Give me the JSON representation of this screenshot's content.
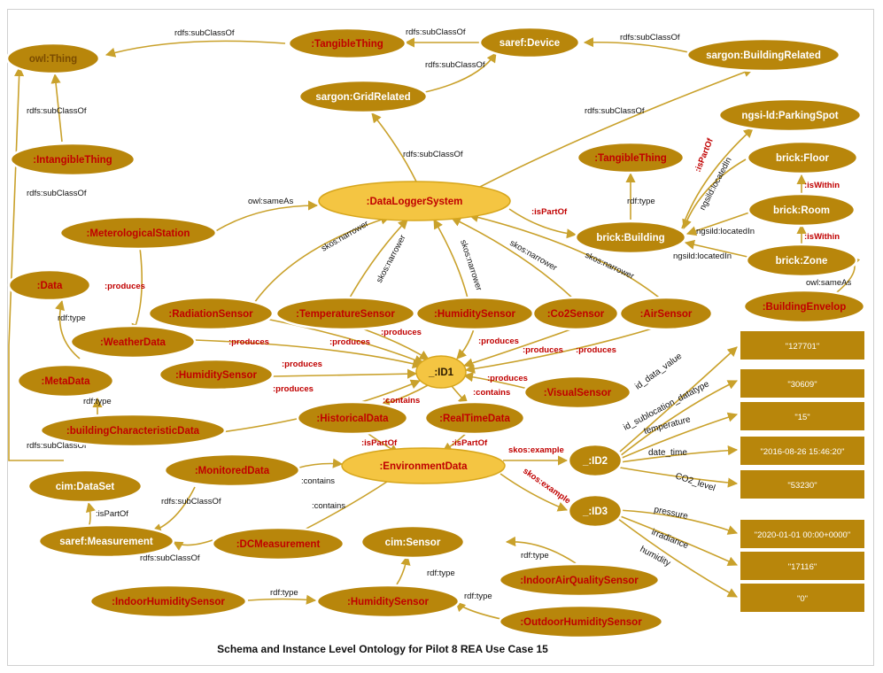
{
  "caption": "Schema and Instance Level Ontology for Pilot 8 REA Use Case 15",
  "colors": {
    "node": "#b8860b",
    "highlight_node": "#f4c542",
    "edge": "#c9a12b",
    "red_label": "#c00000"
  },
  "nodes": {
    "owl_thing": "owl:Thing",
    "tangible1": ":TangibleThing",
    "saref_device": "saref:Device",
    "sargon_building": "sargon:BuildingRelated",
    "sargon_grid": "sargon:GridRelated",
    "ngsi_parking": "ngsi-ld:ParkingSpot",
    "intangible": ":IntangibleThing",
    "tangible2": ":TangibleThing",
    "brick_floor": "brick:Floor",
    "datalogger": ":DataLoggerSystem",
    "brick_room": "brick:Room",
    "meteo": ":MeterologicalStation",
    "brick_building": "brick:Building",
    "brick_zone": "brick:Zone",
    "data": ":Data",
    "building_envelop": ":BuildingEnvelop",
    "radiation": ":RadiationSensor",
    "temperature": ":TemperatureSensor",
    "humidity1": ":HumiditySensor",
    "co2": ":Co2Sensor",
    "air": ":AirSensor",
    "weather": ":WeatherData",
    "humidity2": ":HumiditySensor",
    "id1": "_:ID1",
    "metadata": ":MetaData",
    "visual": ":VisualSensor",
    "historical": ":HistoricalData",
    "realtime": ":RealTimeData",
    "building_char": ":buildingCharacteristicData",
    "monitored": ":MonitoredData",
    "environment": ":EnvironmentData",
    "id2": "_:ID2",
    "cim_dataset": "cim:DataSet",
    "id3": "_:ID3",
    "saref_measurement": "saref:Measurement",
    "dcmeasurement": ":DCMeasurement",
    "cim_sensor": "cim:Sensor",
    "indoor_aq": ":IndoorAirQualitySensor",
    "indoor_hum": ":IndoorHumiditySensor",
    "humidity3": ":HumiditySensor",
    "outdoor_hum": ":OutdoorHumiditySensor"
  },
  "literals": {
    "lit1": "\"127701\"",
    "lit2": "\"30609\"",
    "lit3": "\"15\"",
    "lit4": "\"2016-08-26 15:46:20\"",
    "lit5": "\"53230\"",
    "lit6": "\"2020-01-01 00:00+0000\"",
    "lit7": "\"17116\"",
    "lit8": "\"0\""
  },
  "edge_labels": {
    "e1": "rdfs:subClassOf",
    "e2": "rdfs:subClassOf",
    "e3": "rdfs:subClassOf",
    "e4": "rdfs:subClassOf",
    "e5": "rdfs:subClassOf",
    "e6": "rdfs:subClassOf",
    "e7": "rdfs:subClassOf",
    "e8": "rdfs:subClassOf",
    "e9": "owl:sameAs",
    "e10": ":produces",
    "e11": "skos:narrower",
    "e12": "skos:narrower",
    "e13": "skos:narrower",
    "e14": "skos:narrower",
    "e15": "skos:narrower",
    "e16": ":isPartOf",
    "e17": "rdf:type",
    "e18": ":isPartOf",
    "e19": "ngsild:locatedIn",
    "e20": "ngsild:locatedIn",
    "e21": "ngsild:locatedIn",
    "e22": ":isWithin",
    "e23": ":isWithin",
    "e24": "owl:sameAs",
    "e25": "rdf:type",
    "e26": ":produces",
    "e27": ":produces",
    "e28": ":produces",
    "e29": ":produces",
    "e30": ":produces",
    "e31": ":produces",
    "e32": ":produces",
    "e33": ":produces",
    "e34": ":produces",
    "e35": "rdf:type",
    "e36": ":contains",
    "e37": ":contains",
    "e38": ":isPartOf",
    "e39": ":isPartOf",
    "e40": "rdfs:subClassOf",
    "e41": ":contains",
    "e42": ":contains",
    "e43": "skos:example",
    "e44": "skos:example",
    "e45": ":isPartOf",
    "e46": "rdfs:subClassOf",
    "e47": "rdfs:subClassOf",
    "e48": "rdf:type",
    "e49": "rdf:type",
    "e50": "rdf:type",
    "e51": "rdf:type",
    "e52": "id_data_value",
    "e53": "id_sublocation_datatype",
    "e54": "temperature",
    "e55": "date_time",
    "e56": "CO2_level",
    "e57": "pressure",
    "e58": "irradiance",
    "e59": "humidity"
  }
}
